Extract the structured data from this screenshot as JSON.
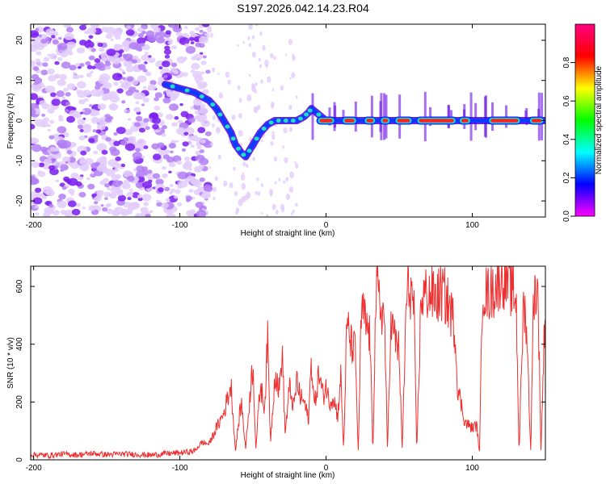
{
  "title": "S197.2026.042.14.23.R04",
  "chart_data": [
    {
      "type": "heatmap",
      "name": "spectrogram",
      "xlabel": "Height of straight line (km)",
      "ylabel": "Frequency (Hz)",
      "xlim": [
        -202,
        150
      ],
      "ylim": [
        -24,
        24
      ],
      "x_ticks": [
        -200,
        -100,
        0,
        100
      ],
      "x_tick_labels": [
        "-200",
        "-100",
        "0",
        "100"
      ],
      "y_ticks": [
        -20,
        -10,
        0,
        10,
        20
      ],
      "y_tick_labels": [
        "-20",
        "-10",
        "0",
        "10",
        "20"
      ],
      "colorbar": {
        "label": "Normalized spectral amplitude",
        "range": [
          0,
          1
        ],
        "ticks": [
          0.0,
          0.2,
          0.4,
          0.6,
          0.8
        ],
        "tick_labels": [
          "0.0",
          "0.2",
          "0.4",
          "0.6",
          "0.8"
        ],
        "colors": [
          "#ff00ff",
          "#0000ff",
          "#00ffff",
          "#00ff00",
          "#ffff00",
          "#ff0000",
          "#ff0080"
        ]
      },
      "ridge": {
        "x": [
          -110,
          -100,
          -90,
          -80,
          -75,
          -70,
          -65,
          -62,
          -58,
          -55,
          -50,
          -45,
          -40,
          -35,
          -30,
          -25,
          -20,
          -15,
          -12,
          -10,
          0,
          150
        ],
        "frequency": [
          9,
          8,
          7,
          5,
          3,
          0,
          -3,
          -6,
          -8,
          -9,
          -6,
          -3,
          -1,
          0,
          0,
          0,
          0,
          1,
          2,
          3,
          0,
          0
        ]
      },
      "strong_segments_x": [
        [
          -5,
          5
        ],
        [
          12,
          20
        ],
        [
          27,
          33
        ],
        [
          38,
          43
        ],
        [
          48,
          58
        ],
        [
          63,
          88
        ],
        [
          92,
          98
        ],
        [
          112,
          132
        ],
        [
          140,
          148
        ]
      ]
    },
    {
      "type": "line",
      "name": "snr",
      "color": "#ee3030",
      "xlabel": "Height of straight line (km)",
      "ylabel": "SNR (10 * v/v)",
      "xlim": [
        -202,
        150
      ],
      "ylim": [
        0,
        670
      ],
      "x_ticks": [
        -200,
        -100,
        0,
        100
      ],
      "x_tick_labels": [
        "-200",
        "-100",
        "0",
        "100"
      ],
      "y_ticks": [
        0,
        200,
        400,
        600
      ],
      "y_tick_labels": [
        "0",
        "200",
        "400",
        "600"
      ],
      "x": [
        -202,
        -190,
        -180,
        -170,
        -160,
        -150,
        -140,
        -130,
        -120,
        -110,
        -100,
        -90,
        -85,
        -80,
        -75,
        -70,
        -65,
        -62,
        -60,
        -58,
        -55,
        -52,
        -50,
        -48,
        -45,
        -42,
        -40,
        -38,
        -35,
        -32,
        -30,
        -28,
        -25,
        -22,
        -20,
        -18,
        -15,
        -12,
        -10,
        -8,
        -5,
        -2,
        0,
        2,
        5,
        8,
        10,
        12,
        14,
        15,
        17,
        20,
        22,
        24,
        25,
        27,
        30,
        32,
        34,
        35,
        37,
        40,
        42,
        44,
        45,
        47,
        50,
        52,
        55,
        57,
        60,
        62,
        65,
        70,
        75,
        80,
        85,
        88,
        90,
        95,
        100,
        103,
        105,
        107,
        110,
        115,
        120,
        125,
        130,
        132,
        135,
        137,
        140,
        142,
        145,
        147,
        150
      ],
      "y": [
        18,
        15,
        20,
        17,
        22,
        18,
        20,
        19,
        16,
        21,
        24,
        30,
        60,
        55,
        110,
        160,
        260,
        30,
        120,
        200,
        40,
        230,
        330,
        40,
        260,
        180,
        420,
        60,
        300,
        240,
        380,
        90,
        250,
        180,
        280,
        220,
        200,
        140,
        350,
        180,
        300,
        220,
        260,
        200,
        220,
        150,
        300,
        30,
        430,
        460,
        400,
        380,
        25,
        480,
        520,
        470,
        430,
        25,
        560,
        580,
        530,
        490,
        25,
        440,
        470,
        420,
        380,
        25,
        560,
        600,
        540,
        25,
        560,
        580,
        560,
        580,
        520,
        460,
        250,
        130,
        110,
        120,
        25,
        600,
        570,
        590,
        640,
        610,
        560,
        25,
        540,
        480,
        25,
        590,
        570,
        25,
        580
      ]
    }
  ]
}
